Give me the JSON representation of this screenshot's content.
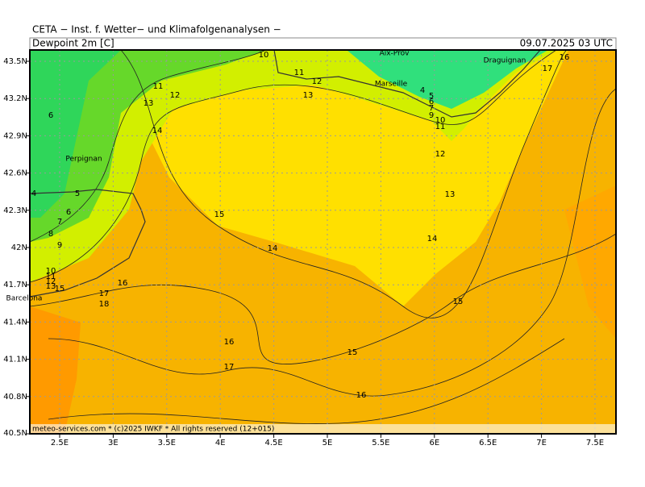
{
  "header": {
    "agency": "CETA − Inst. f. Wetter− und Klimafolgenanalysen −",
    "product": "Dewpoint 2m [C]",
    "valid_time": "09.07.2025 03 UTC"
  },
  "footer": "meteo-services.com * (c)2025 IWKF * All rights reserved (12+015)",
  "longitude_ticks": [
    "2.5E",
    "3E",
    "3.5E",
    "4E",
    "4.5E",
    "5E",
    "5.5E",
    "6E",
    "6.5E",
    "7E",
    "7.5E"
  ],
  "latitude_ticks": [
    "43.5N",
    "43.2N",
    "42.9N",
    "42.6N",
    "42.3N",
    "42N",
    "41.7N",
    "41.4N",
    "41.1N",
    "40.8N",
    "40.5N"
  ],
  "places": [
    "Aix-Prov",
    "Marseille",
    "Draguignan",
    "Perpignan",
    "Barcelona"
  ],
  "contour_labels": [
    10,
    11,
    12,
    13,
    11,
    12,
    13,
    14,
    6,
    4,
    5,
    6,
    7,
    9,
    10,
    11,
    12,
    13,
    14,
    15,
    15,
    16,
    16,
    17,
    15,
    14,
    16,
    17,
    4,
    5,
    6,
    7,
    8,
    9,
    10,
    11,
    12,
    13,
    15,
    17,
    16,
    18
  ]
}
